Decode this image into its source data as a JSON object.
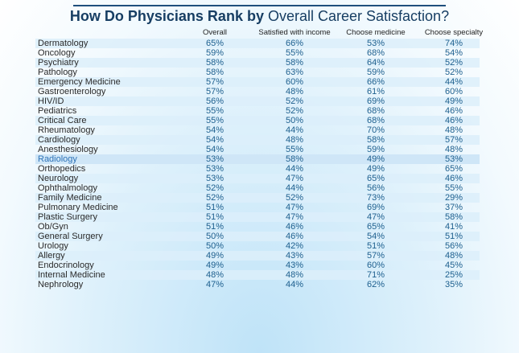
{
  "title_bold": "How Do Physicians Rank by",
  "title_regular": "Overall Career Satisfaction?",
  "chart_data": {
    "type": "table",
    "columns": [
      "Overall",
      "Satisfied with income",
      "Choose medicine",
      "Choose specialty"
    ],
    "highlighted_row": "Radiology",
    "rows": [
      {
        "specialty": "Dermatology",
        "values": [
          "65%",
          "66%",
          "53%",
          "74%"
        ]
      },
      {
        "specialty": "Oncology",
        "values": [
          "59%",
          "55%",
          "68%",
          "54%"
        ]
      },
      {
        "specialty": "Psychiatry",
        "values": [
          "58%",
          "58%",
          "64%",
          "52%"
        ]
      },
      {
        "specialty": "Pathology",
        "values": [
          "58%",
          "63%",
          "59%",
          "52%"
        ]
      },
      {
        "specialty": "Emergency Medicine",
        "values": [
          "57%",
          "60%",
          "66%",
          "44%"
        ]
      },
      {
        "specialty": "Gastroenterology",
        "values": [
          "57%",
          "48%",
          "61%",
          "60%"
        ]
      },
      {
        "specialty": "HIV/ID",
        "values": [
          "56%",
          "52%",
          "69%",
          "49%"
        ]
      },
      {
        "specialty": "Pediatrics",
        "values": [
          "55%",
          "52%",
          "68%",
          "46%"
        ]
      },
      {
        "specialty": "Critical Care",
        "values": [
          "55%",
          "50%",
          "68%",
          "46%"
        ]
      },
      {
        "specialty": "Rheumatology",
        "values": [
          "54%",
          "44%",
          "70%",
          "48%"
        ]
      },
      {
        "specialty": "Cardiology",
        "values": [
          "54%",
          "48%",
          "58%",
          "57%"
        ]
      },
      {
        "specialty": "Anesthesiology",
        "values": [
          "54%",
          "55%",
          "59%",
          "48%"
        ]
      },
      {
        "specialty": "Radiology",
        "values": [
          "53%",
          "58%",
          "49%",
          "53%"
        ]
      },
      {
        "specialty": "Orthopedics",
        "values": [
          "53%",
          "44%",
          "49%",
          "65%"
        ]
      },
      {
        "specialty": "Neurology",
        "values": [
          "53%",
          "47%",
          "65%",
          "46%"
        ]
      },
      {
        "specialty": "Ophthalmology",
        "values": [
          "52%",
          "44%",
          "56%",
          "55%"
        ]
      },
      {
        "specialty": "Family Medicine",
        "values": [
          "52%",
          "52%",
          "73%",
          "29%"
        ]
      },
      {
        "specialty": "Pulmonary Medicine",
        "values": [
          "51%",
          "47%",
          "69%",
          "37%"
        ]
      },
      {
        "specialty": "Plastic Surgery",
        "values": [
          "51%",
          "47%",
          "47%",
          "58%"
        ]
      },
      {
        "specialty": "Ob/Gyn",
        "values": [
          "51%",
          "46%",
          "65%",
          "41%"
        ]
      },
      {
        "specialty": "General Surgery",
        "values": [
          "50%",
          "46%",
          "54%",
          "51%"
        ]
      },
      {
        "specialty": "Urology",
        "values": [
          "50%",
          "42%",
          "51%",
          "56%"
        ]
      },
      {
        "specialty": "Allergy",
        "values": [
          "49%",
          "43%",
          "57%",
          "48%"
        ]
      },
      {
        "specialty": "Endocrinology",
        "values": [
          "49%",
          "43%",
          "60%",
          "45%"
        ]
      },
      {
        "specialty": "Internal Medicine",
        "values": [
          "48%",
          "48%",
          "71%",
          "25%"
        ]
      },
      {
        "specialty": "Nephrology",
        "values": [
          "47%",
          "44%",
          "62%",
          "35%"
        ]
      }
    ]
  }
}
